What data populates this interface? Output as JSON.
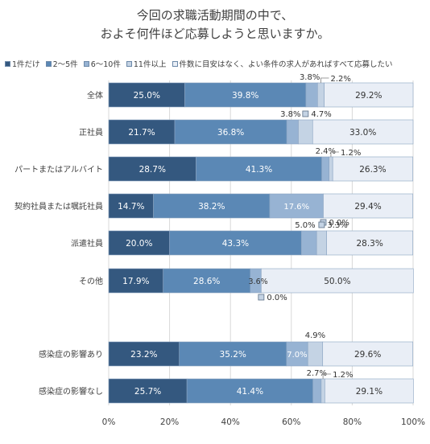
{
  "chart_data": {
    "type": "bar",
    "orientation": "horizontal",
    "stacked": true,
    "title_line1": "今回の求職活動期間の中で、",
    "title_line2": "およそ何件ほど応募しようと思いますか。",
    "categories": [
      "全体",
      "正社員",
      "パートまたはアルバイト",
      "契約社員または嘱託社員",
      "派遣社員",
      "その他",
      "感染症の影響あり",
      "感染症の影響なし"
    ],
    "series": [
      {
        "name": "1件だけ",
        "values": [
          25.0,
          21.7,
          28.7,
          14.7,
          20.0,
          17.9,
          23.2,
          25.7
        ]
      },
      {
        "name": "2～5件",
        "values": [
          39.8,
          36.8,
          41.3,
          38.2,
          43.3,
          28.6,
          35.2,
          41.4
        ]
      },
      {
        "name": "6～10件",
        "values": [
          3.8,
          3.8,
          2.4,
          17.6,
          5.0,
          3.6,
          7.0,
          2.7
        ]
      },
      {
        "name": "11件以上",
        "values": [
          2.2,
          4.7,
          1.2,
          0.0,
          3.3,
          0.0,
          4.9,
          1.2
        ]
      },
      {
        "name": "件数に目安はなく、よい条件の求人があればすべて応募したい",
        "values": [
          29.2,
          33.0,
          26.3,
          29.4,
          28.3,
          50.0,
          29.6,
          29.1
        ]
      }
    ],
    "data_labels": [
      [
        "25.0%",
        "39.8%",
        "3.8%",
        "2.2%",
        "29.2%"
      ],
      [
        "21.7%",
        "36.8%",
        "3.8%",
        "4.7%",
        "33.0%"
      ],
      [
        "28.7%",
        "41.3%",
        "2.4%",
        "1.2%",
        "26.3%"
      ],
      [
        "14.7%",
        "38.2%",
        "17.6%",
        "0.0%",
        "29.4%"
      ],
      [
        "20.0%",
        "43.3%",
        "5.0%",
        "3.3%",
        "28.3%"
      ],
      [
        "17.9%",
        "28.6%",
        "3.6%",
        "0.0%",
        "50.0%"
      ],
      [
        "23.2%",
        "35.2%",
        "7.0%",
        "4.9%",
        "29.6%"
      ],
      [
        "25.7%",
        "41.4%",
        "2.7%",
        "1.2%",
        "29.1%"
      ]
    ],
    "xlim": [
      0,
      100
    ],
    "xticks": [
      "0%",
      "20%",
      "40%",
      "60%",
      "80%",
      "100%"
    ],
    "grid": true,
    "legend_position": "top",
    "colors": [
      "#34587f",
      "#5b88b5",
      "#97b3d3",
      "#c4d3e4",
      "#e9eef6"
    ]
  }
}
